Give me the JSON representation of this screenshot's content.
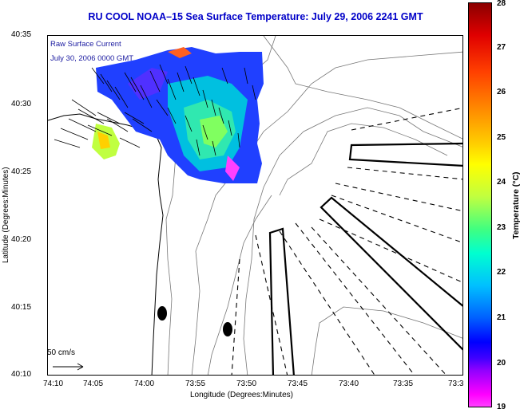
{
  "title": "RU COOL   NOAA–15   Sea Surface Temperature:  July 29, 2006 2241 GMT",
  "annotations": {
    "line1": "Raw Surface Current",
    "line2": "July 30, 2006 0000 GMT"
  },
  "scale": {
    "label": "50 cm/s"
  },
  "axes": {
    "xlabel": "Longitude (Degrees:Minutes)",
    "ylabel": "Latitude (Degrees:Minutes)",
    "xticks": [
      "74:10",
      "74:05",
      "74:00",
      "73:55",
      "73:50",
      "73:45",
      "73:40",
      "73:35",
      "73:3"
    ],
    "yticks": [
      "40:35",
      "40:30",
      "40:25",
      "40:20",
      "40:15",
      "40:10"
    ]
  },
  "colorbar": {
    "label": "Temperature (°C)",
    "ticks": [
      "28",
      "27",
      "26",
      "25",
      "24",
      "23",
      "22",
      "21",
      "20",
      "19"
    ]
  }
}
